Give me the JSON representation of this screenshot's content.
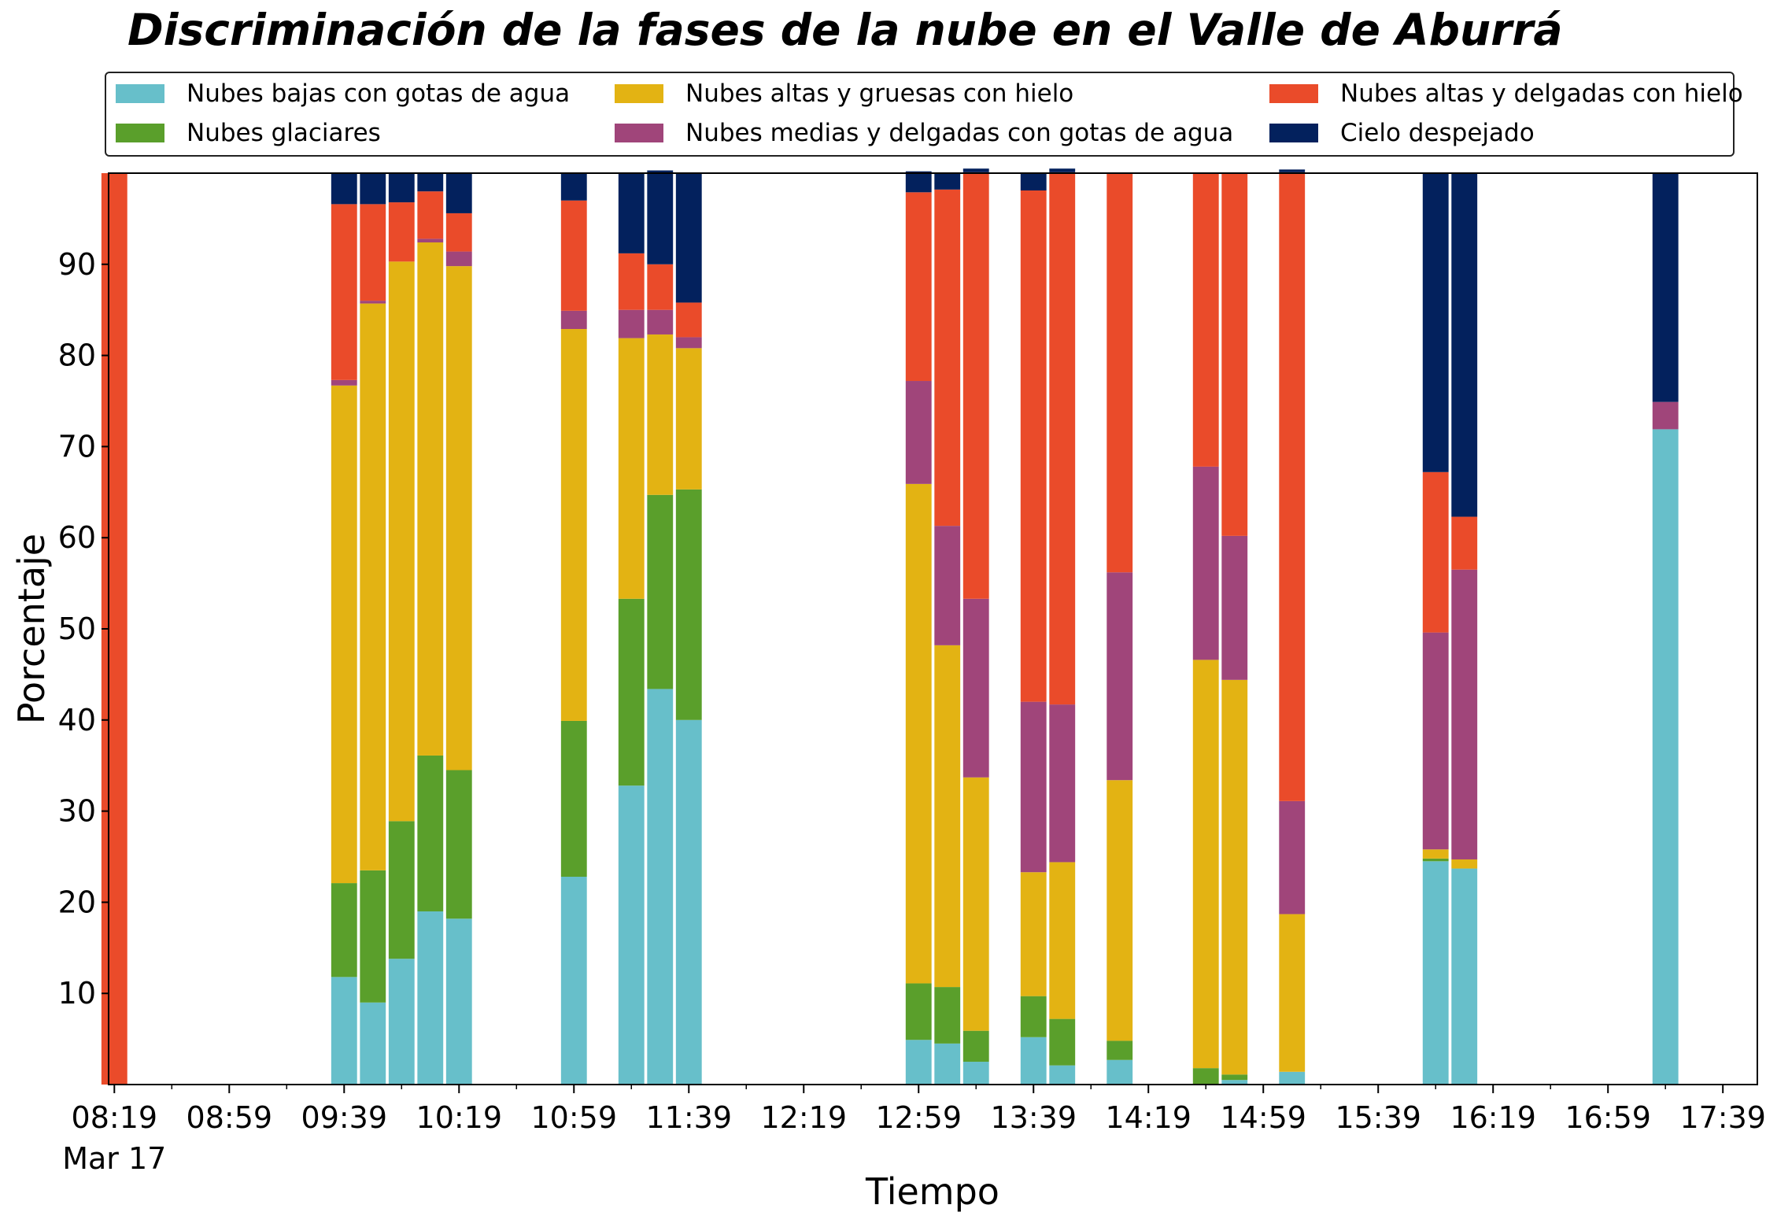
{
  "chart_data": {
    "type": "bar",
    "stacked": true,
    "title": "Discriminación de la fases de la nube en el Valle de Aburrá",
    "xlabel": "Tiempo",
    "ylabel": "Porcentaje",
    "ylim": [
      0,
      100
    ],
    "y_ticks": [
      10,
      20,
      30,
      40,
      50,
      60,
      70,
      80,
      90
    ],
    "x_ticks": [
      "08:19",
      "08:59",
      "09:39",
      "10:19",
      "10:59",
      "11:39",
      "12:19",
      "12:59",
      "13:39",
      "14:19",
      "14:59",
      "15:39",
      "16:19",
      "16:59",
      "17:39"
    ],
    "x_range_minutes": [
      "08:17",
      "17:51"
    ],
    "x_date_label": "Mar 17",
    "bar_width_minutes": 9,
    "grid": false,
    "legend_position": "top",
    "categories": [
      "08:19",
      "09:39",
      "09:49",
      "09:59",
      "10:09",
      "10:19",
      "10:59",
      "11:19",
      "11:29",
      "11:39",
      "12:59",
      "13:09",
      "13:19",
      "13:39",
      "13:49",
      "14:09",
      "14:39",
      "14:49",
      "15:09",
      "15:59",
      "16:09",
      "17:19"
    ],
    "series": [
      {
        "name": "Nubes bajas con gotas de agua",
        "color": "#67bfca",
        "values": [
          0,
          11.8,
          9.0,
          13.8,
          19.0,
          18.2,
          22.8,
          32.8,
          43.4,
          40.0,
          4.9,
          4.5,
          2.5,
          5.2,
          2.1,
          2.7,
          0,
          0.5,
          1.4,
          24.5,
          23.7,
          71.9
        ]
      },
      {
        "name": "Nubes glaciares",
        "color": "#5a9f2b",
        "values": [
          0,
          10.3,
          14.5,
          15.1,
          17.1,
          16.3,
          17.1,
          20.5,
          21.3,
          25.3,
          6.2,
          6.2,
          3.4,
          4.5,
          5.1,
          2.1,
          1.8,
          0.6,
          0,
          0.3,
          0,
          0
        ]
      },
      {
        "name": "Nubes altas y gruesas con hielo",
        "color": "#e3b313",
        "values": [
          0,
          54.6,
          62.2,
          61.4,
          56.3,
          55.3,
          43.0,
          28.6,
          17.6,
          15.5,
          54.8,
          37.5,
          27.8,
          13.6,
          17.2,
          28.6,
          44.8,
          43.3,
          17.3,
          1.0,
          1.0,
          0
        ]
      },
      {
        "name": "Nubes medias y delgadas con gotas de agua",
        "color": "#a0457a",
        "values": [
          0,
          0.6,
          0.3,
          0,
          0.4,
          1.6,
          2.0,
          3.1,
          2.7,
          1.2,
          11.3,
          13.1,
          19.6,
          18.7,
          17.3,
          22.8,
          21.2,
          15.8,
          12.4,
          23.8,
          31.8,
          3.0
        ]
      },
      {
        "name": "Nubes altas y delgadas con hielo",
        "color": "#ea4b2a",
        "values": [
          100,
          19.3,
          10.6,
          6.5,
          5.2,
          4.2,
          12.1,
          6.2,
          5.0,
          3.8,
          20.7,
          36.9,
          46.8,
          56.1,
          58.4,
          43.8,
          32.2,
          39.8,
          69.0,
          17.6,
          5.8,
          0
        ]
      },
      {
        "name": "Cielo despejado",
        "color": "#03215d",
        "values": [
          0,
          3.4,
          3.4,
          3.2,
          2.0,
          4.4,
          3.0,
          8.8,
          10.3,
          14.2,
          2.3,
          1.8,
          0.4,
          1.9,
          0.4,
          0,
          0,
          0,
          0.3,
          32.8,
          37.7,
          25.1
        ]
      }
    ]
  }
}
